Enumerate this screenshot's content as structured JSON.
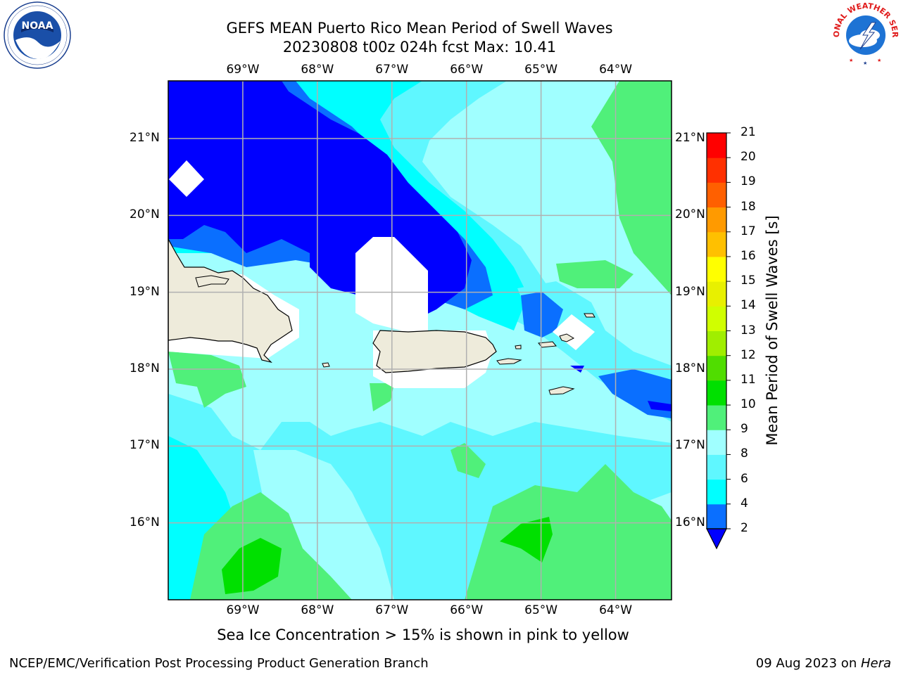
{
  "title_line1": "GEFS MEAN Puerto Rico Mean Period of Swell Waves",
  "title_line2": "20230808 t00z 024h fcst   Max: 10.41",
  "map": {
    "lon_ticks": [
      "69°W",
      "68°W",
      "67°W",
      "66°W",
      "65°W",
      "64°W"
    ],
    "lat_ticks": [
      "21°N",
      "20°N",
      "19°N",
      "18°N",
      "17°N",
      "16°N"
    ],
    "lon_range": [
      -70.0,
      -63.25
    ],
    "lat_range": [
      15.0,
      21.75
    ]
  },
  "colorbar": {
    "label": "Mean Period of Swell Waves [s]",
    "levels": [
      "2",
      "4",
      "6",
      "8",
      "9",
      "10",
      "11",
      "12",
      "13",
      "14",
      "15",
      "16",
      "17",
      "18",
      "19",
      "20",
      "21"
    ],
    "colors": [
      "#0000ff",
      "#0a6fff",
      "#00ffff",
      "#5ff7ff",
      "#a0ffff",
      "#50f07a",
      "#00e000",
      "#50dd00",
      "#a0ee00",
      "#d0ff00",
      "#e8f000",
      "#ffff00",
      "#ffc000",
      "#ff9a00",
      "#ff6000",
      "#ff3000",
      "#ff0000"
    ]
  },
  "footnote": "Sea Ice Concentration > 15% is shown in pink to yellow",
  "credit_left": "NCEP/EMC/Verification Post Processing Product Generation Branch",
  "credit_right_prefix": "09 Aug 2023 on ",
  "credit_right_host": "Hera",
  "logos": {
    "left": "noaa-logo",
    "left_text": "NOAA",
    "right": "nws-logo",
    "right_text": "NATIONAL WEATHER SERVICE"
  }
}
